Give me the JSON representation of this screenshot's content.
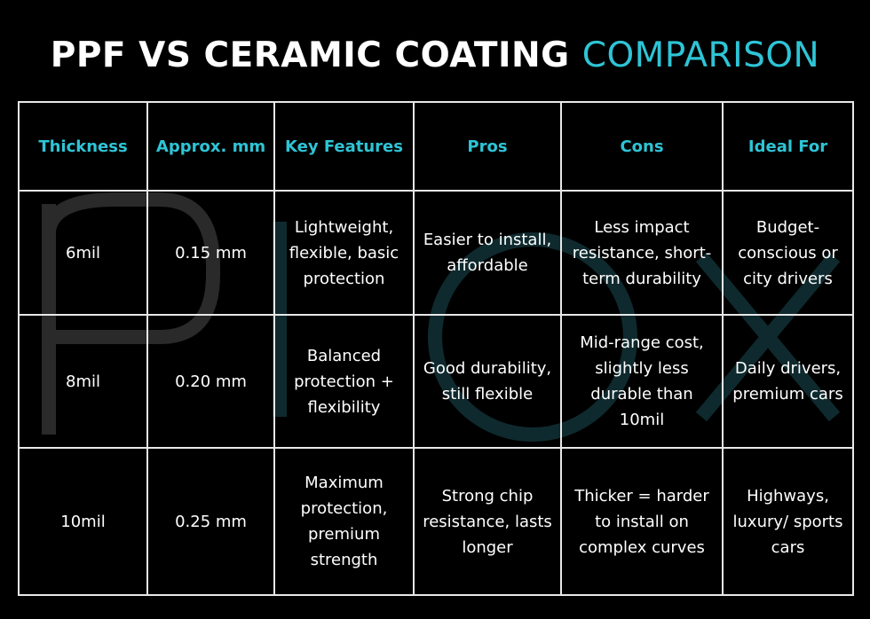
{
  "title": {
    "main": "PPF VS CERAMIC COATING",
    "highlight": "COMPARISON"
  },
  "table": {
    "headers": [
      "Thickness",
      "Approx. mm",
      "Key Features",
      "Pros",
      "Cons",
      "Ideal For"
    ],
    "rows": [
      [
        "6mil",
        "0.15 mm",
        "Lightweight, flexible, basic protection",
        "Easier to install, affordable",
        "Less impact resistance, short-term durability",
        "Budget-conscious or city drivers"
      ],
      [
        "8mil",
        "0.20 mm",
        "Balanced protection + flexibility",
        "Good durability, still flexible",
        "Mid-range cost, slightly less durable than 10mil",
        "Daily drivers, premium cars"
      ],
      [
        "10mil",
        "0.25 mm",
        "Maximum protection, premium strength",
        "Strong chip resistance, lasts longer",
        "Thicker = harder to install on complex curves",
        "Highways, luxury/ sports cars"
      ]
    ]
  }
}
